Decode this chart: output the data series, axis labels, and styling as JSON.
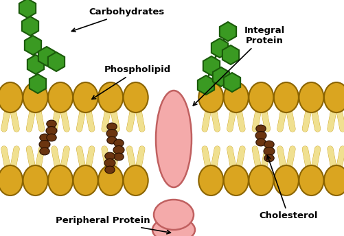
{
  "bg_color": "#ffffff",
  "ph_head_color": "#DAA520",
  "ph_head_edge": "#8B6400",
  "ph_tail_color": "#F0E090",
  "ph_tail_edge": "#C8A020",
  "integral_protein_color": "#F4AAAA",
  "integral_protein_edge": "#C06060",
  "cholesterol_color": "#6B3510",
  "cholesterol_edge": "#2A1000",
  "carbohydrate_color": "#3A9A22",
  "carbohydrate_edge": "#1A5A0A",
  "label_color": "#000000",
  "label_fontsize": 9.5,
  "labels": {
    "carbohydrates": "Carbohydrates",
    "phospholipid": "Phospholipid",
    "integral_protein": "Integral\nProtein",
    "peripheral_protein": "Peripheral Protein",
    "cholesterol": "Cholesterol"
  },
  "figsize": [
    5.01,
    3.44
  ],
  "dpi": 100
}
